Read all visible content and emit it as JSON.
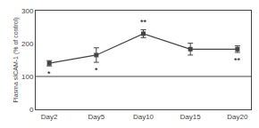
{
  "chart_data": {
    "type": "line",
    "categories": [
      "Day2",
      "Day5",
      "Day10",
      "Day15",
      "Day20"
    ],
    "values": [
      140,
      165,
      230,
      183,
      183
    ],
    "errors": [
      8,
      22,
      12,
      18,
      10
    ],
    "color": "#444444",
    "marker": "square",
    "control_level": 100,
    "ylabel": "Plasma sICAM-1 (% of control)",
    "ylim": [
      0,
      300
    ],
    "yticks": [
      0,
      100,
      200,
      300
    ],
    "grid": false,
    "annotations": [
      {
        "category": "Day2",
        "text": "*",
        "position": "below"
      },
      {
        "category": "Day5",
        "text": "*",
        "position": "below"
      },
      {
        "category": "Day10",
        "text": "**",
        "position": "above"
      },
      {
        "category": "Day20",
        "text": "**",
        "position": "below"
      }
    ]
  }
}
